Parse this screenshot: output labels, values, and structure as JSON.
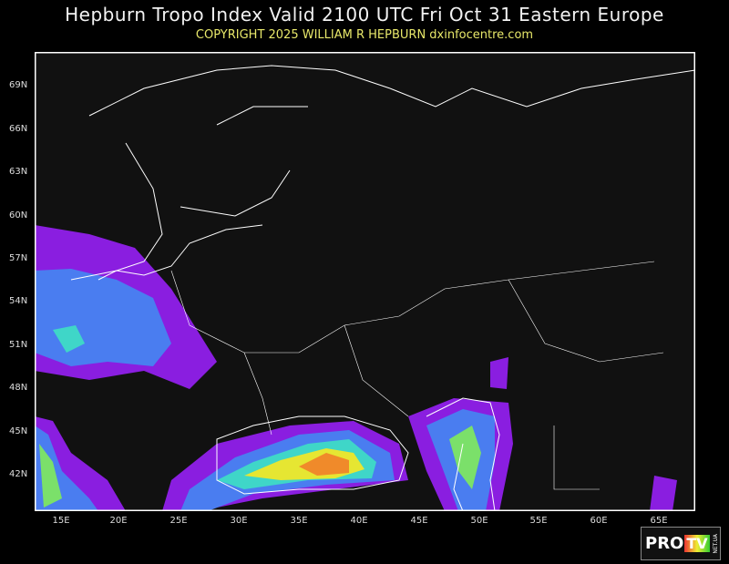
{
  "header": {
    "title": "Hepburn Tropo Index Valid 2100 UTC Fri Oct 31 Eastern Europe",
    "copyright": "COPYRIGHT 2025  WILLIAM R HEPBURN  dxinfocentre.com"
  },
  "map": {
    "lat_labels": [
      "69N",
      "66N",
      "63N",
      "60N",
      "57N",
      "54N",
      "51N",
      "48N",
      "45N",
      "42N"
    ],
    "lon_labels": [
      "15E",
      "20E",
      "25E",
      "30E",
      "35E",
      "40E",
      "45E",
      "50E",
      "55E",
      "60E",
      "65E"
    ],
    "colors": {
      "background": "#111111",
      "frame": "#ffffff",
      "coast": "#ffffff",
      "purple": "#8a1ee0",
      "blue": "#4a7df0",
      "cyan": "#3fd6c8",
      "green": "#7be06a",
      "yellow": "#e6e632",
      "orange": "#f08a2a",
      "red": "#e03a2a"
    }
  },
  "watermark": {
    "text": "PRO TV NET.UA"
  }
}
